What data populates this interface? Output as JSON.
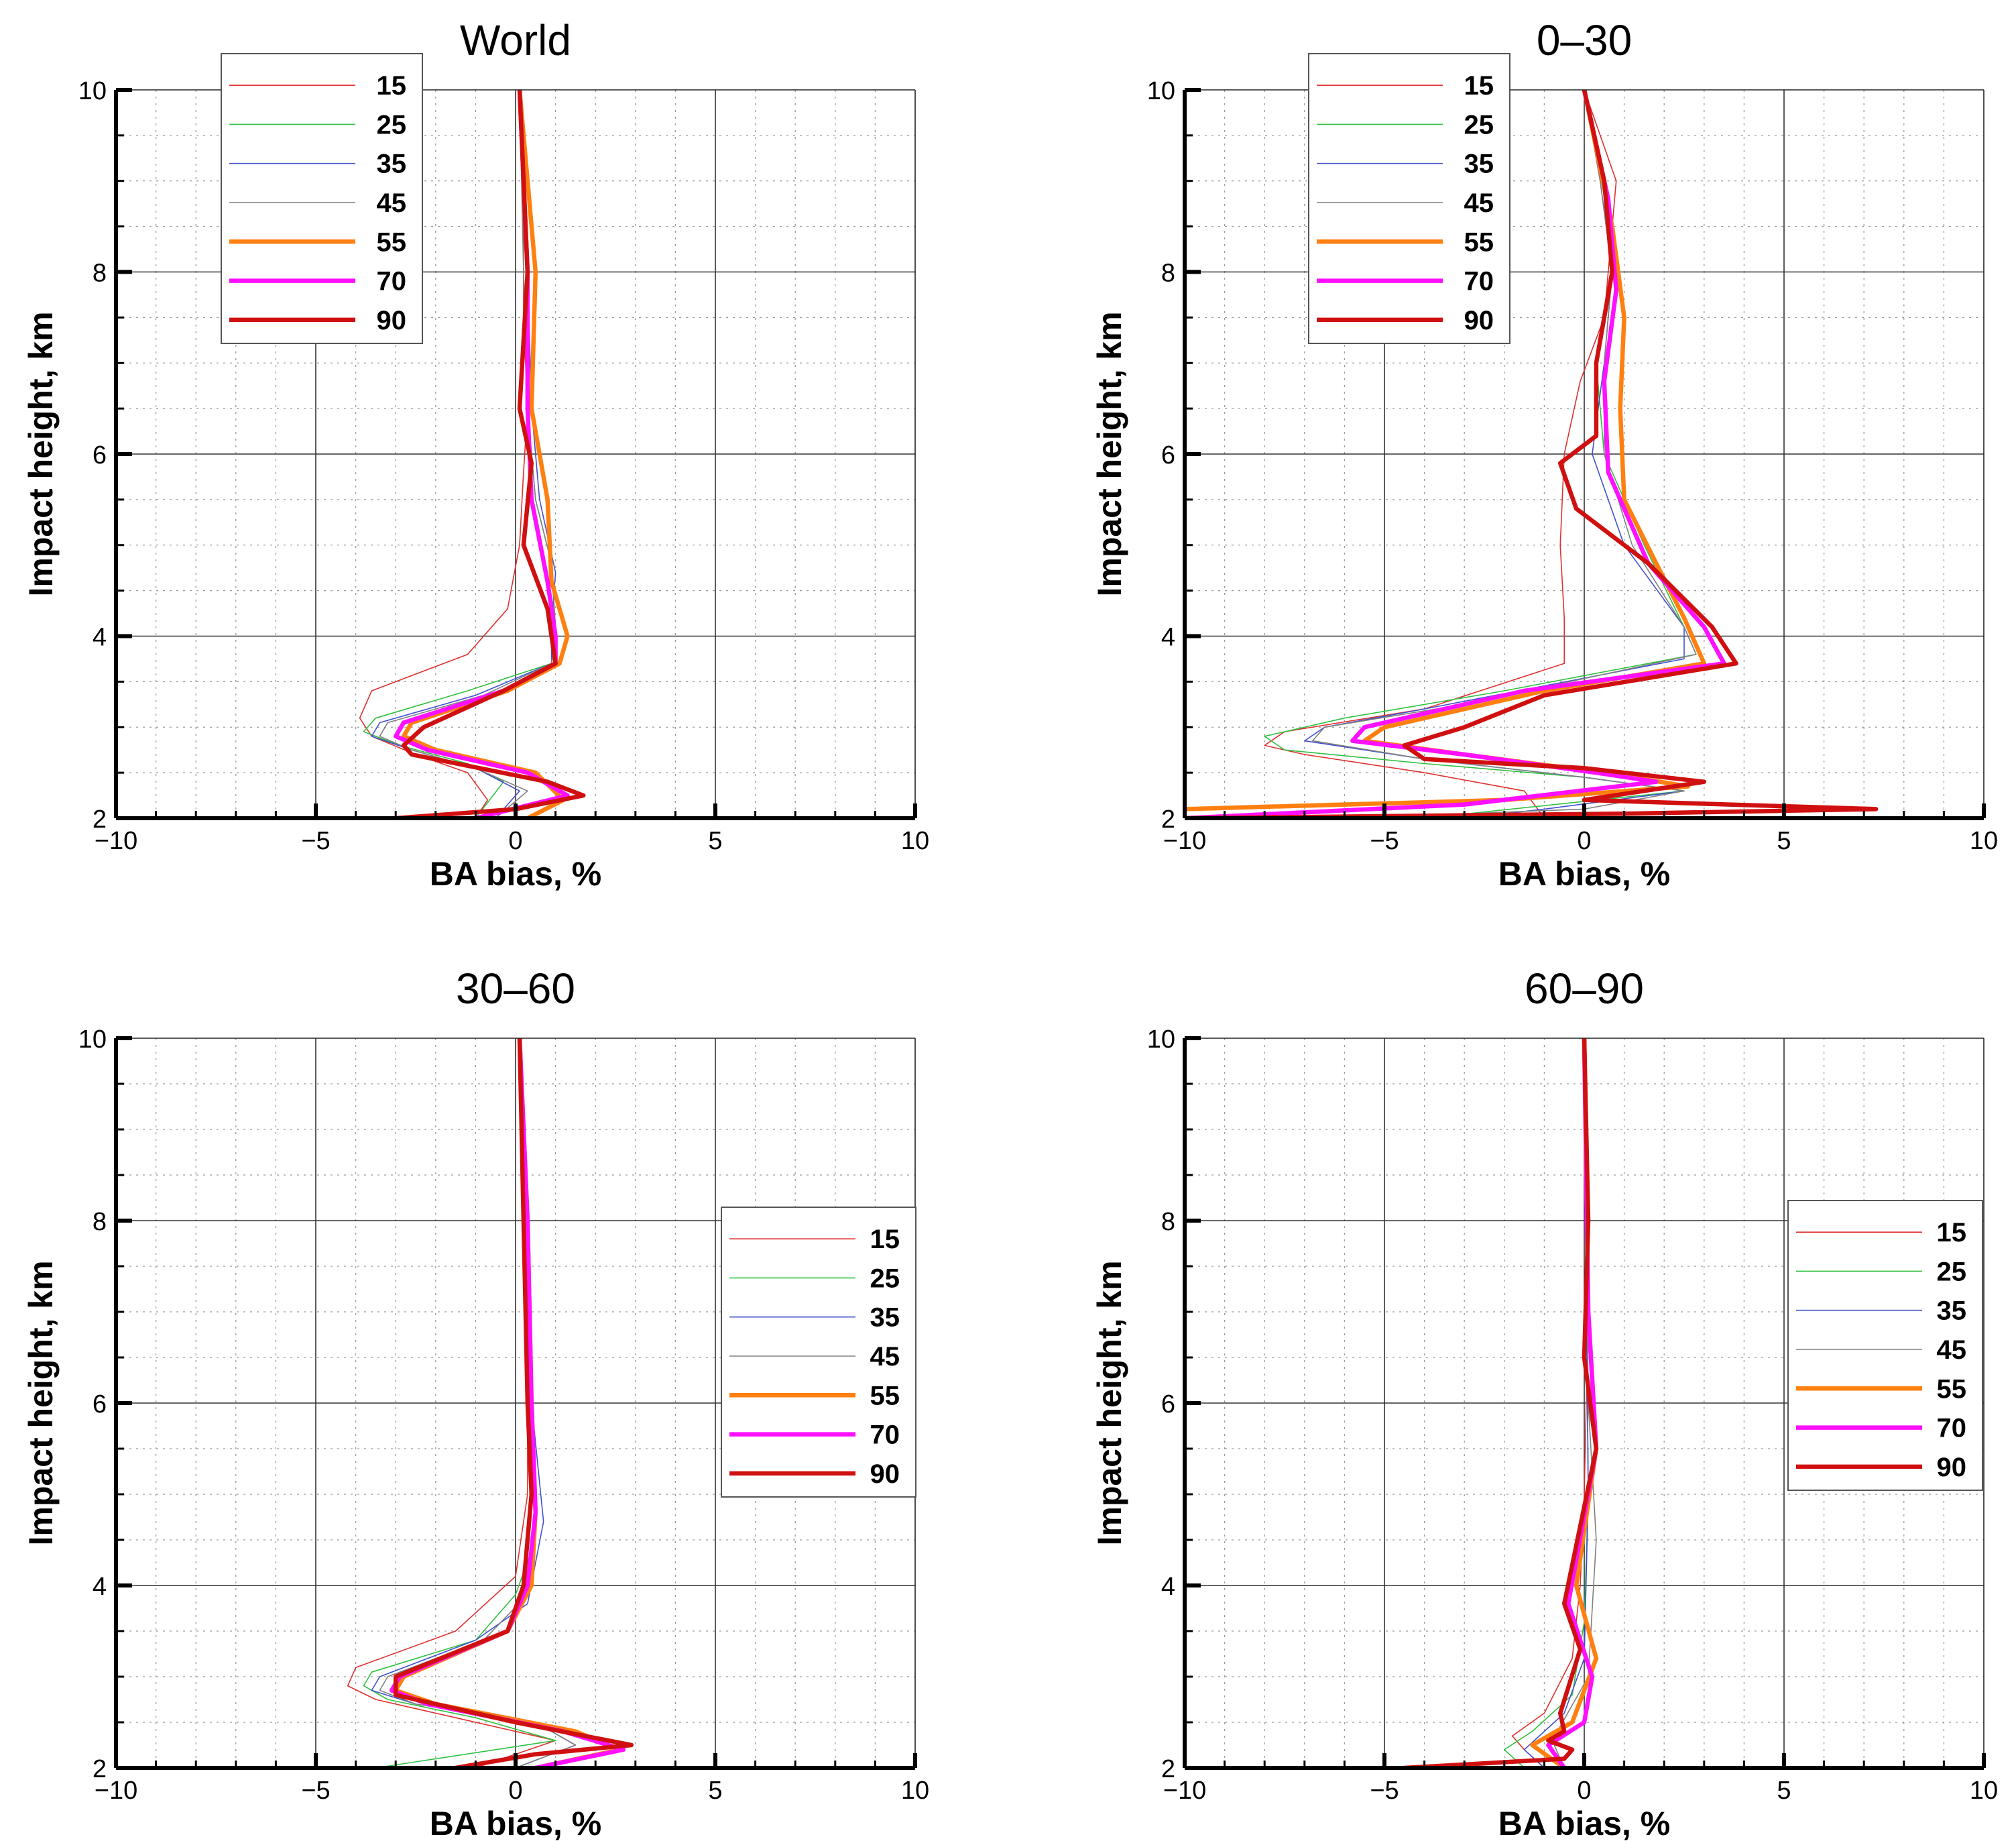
{
  "figure": {
    "colors": {
      "15": "#e03030",
      "25": "#30c040",
      "35": "#4050d0",
      "45": "#808080",
      "55": "#ff8010",
      "70": "#ff10ff",
      "90": "#d01010"
    }
  },
  "chart_data": [
    {
      "type": "line",
      "title": "World",
      "xlabel": "BA bias, %",
      "ylabel": "Impact height, km",
      "xlim": [
        -10,
        10
      ],
      "ylim": [
        2,
        10
      ],
      "xticks": [
        -10,
        -5,
        0,
        5,
        10
      ],
      "yticks": [
        2,
        4,
        6,
        8,
        10
      ],
      "xtick_labels": [
        "−10",
        "−5",
        "0",
        "5",
        "10"
      ],
      "ytick_labels": [
        "2",
        "4",
        "6",
        "8",
        "10"
      ],
      "grid": true,
      "legend_position": "top-left",
      "series": [
        {
          "name": "15",
          "x": [
            -1.0,
            -0.7,
            -1.2,
            -2.5,
            -3.6,
            -3.9,
            -3.6,
            -1.2,
            -0.2,
            0.1,
            0.2,
            0.3,
            0.2,
            0.2,
            0.1
          ],
          "y": [
            2.0,
            2.2,
            2.5,
            2.7,
            2.9,
            3.1,
            3.4,
            3.8,
            4.3,
            5.0,
            5.8,
            6.5,
            7.5,
            8.5,
            10.0
          ]
        },
        {
          "name": "25",
          "x": [
            -1.0,
            -0.3,
            -1.2,
            -2.9,
            -3.8,
            -3.5,
            -1.2,
            0.9,
            1.0,
            0.9,
            0.5,
            0.3,
            0.3,
            0.1
          ],
          "y": [
            2.0,
            2.4,
            2.6,
            2.8,
            2.95,
            3.1,
            3.4,
            3.7,
            4.0,
            4.8,
            5.5,
            6.5,
            8.0,
            10.0
          ]
        },
        {
          "name": "35",
          "x": [
            -0.5,
            0.1,
            -1.0,
            -2.6,
            -3.6,
            -3.4,
            -1.0,
            0.9,
            0.9,
            1.0,
            0.6,
            0.4,
            0.3,
            0.1
          ],
          "y": [
            2.0,
            2.3,
            2.55,
            2.75,
            2.9,
            3.05,
            3.35,
            3.7,
            4.1,
            4.7,
            5.5,
            6.5,
            8.0,
            10.0
          ]
        },
        {
          "name": "45",
          "x": [
            -0.5,
            0.3,
            -1.0,
            -2.6,
            -3.4,
            -3.2,
            -0.8,
            0.9,
            1.0,
            0.9,
            0.5,
            0.3,
            0.2,
            0.1
          ],
          "y": [
            2.0,
            2.3,
            2.55,
            2.75,
            2.9,
            3.05,
            3.35,
            3.7,
            4.1,
            4.8,
            5.5,
            6.5,
            8.0,
            10.0
          ]
        },
        {
          "name": "55",
          "x": [
            0.3,
            1.2,
            0.5,
            -2.0,
            -2.8,
            -2.6,
            -0.2,
            1.1,
            1.3,
            0.9,
            0.8,
            0.4,
            0.5,
            0.1
          ],
          "y": [
            2.0,
            2.2,
            2.5,
            2.75,
            2.9,
            3.05,
            3.4,
            3.7,
            4.0,
            4.6,
            5.5,
            6.5,
            8.0,
            10.0
          ]
        },
        {
          "name": "70",
          "x": [
            -1.0,
            1.3,
            0.3,
            -2.2,
            -3.0,
            -2.8,
            -0.3,
            1.0,
            1.0,
            0.8,
            0.4,
            0.3,
            0.3,
            0.1
          ],
          "y": [
            2.0,
            2.25,
            2.5,
            2.75,
            2.9,
            3.05,
            3.4,
            3.7,
            4.0,
            4.6,
            5.5,
            6.5,
            8.0,
            10.0
          ]
        },
        {
          "name": "90",
          "x": [
            -3.0,
            0.0,
            1.7,
            0.8,
            -2.6,
            -2.8,
            -2.3,
            -0.3,
            1.0,
            0.8,
            0.2,
            0.4,
            0.1,
            0.3,
            0.1
          ],
          "y": [
            2.0,
            2.1,
            2.25,
            2.4,
            2.7,
            2.8,
            3.0,
            3.4,
            3.7,
            4.3,
            5.0,
            5.9,
            6.5,
            8.0,
            10.0
          ]
        }
      ]
    },
    {
      "type": "line",
      "title": "0–30",
      "xlabel": "BA bias, %",
      "ylabel": "Impact height, km",
      "xlim": [
        -10,
        10
      ],
      "ylim": [
        2,
        10
      ],
      "xticks": [
        -10,
        -5,
        0,
        5,
        10
      ],
      "yticks": [
        2,
        4,
        6,
        8,
        10
      ],
      "xtick_labels": [
        "−10",
        "−5",
        "0",
        "5",
        "10"
      ],
      "ytick_labels": [
        "2",
        "4",
        "6",
        "8",
        "10"
      ],
      "grid": true,
      "legend_position": "top-left",
      "series": [
        {
          "name": "15",
          "x": [
            -1.0,
            -1.5,
            -4.0,
            -7.0,
            -8.0,
            -7.5,
            -4.0,
            -0.5,
            -0.5,
            -0.6,
            -0.5,
            -0.1,
            0.5,
            0.7,
            0.8,
            0.0
          ],
          "y": [
            2.0,
            2.3,
            2.5,
            2.7,
            2.8,
            2.95,
            3.2,
            3.7,
            4.2,
            5.0,
            6.0,
            6.8,
            7.5,
            8.5,
            9.0,
            10.0
          ]
        },
        {
          "name": "25",
          "x": [
            -4.0,
            2.5,
            0.0,
            -4.0,
            -7.5,
            -8.0,
            -6.0,
            -2.0,
            2.8,
            2.5,
            1.5,
            0.5,
            0.3,
            0.7,
            0.5,
            0.0
          ],
          "y": [
            2.0,
            2.3,
            2.45,
            2.6,
            2.75,
            2.9,
            3.1,
            3.4,
            3.8,
            4.1,
            5.0,
            6.0,
            7.0,
            8.0,
            9.0,
            10.0
          ]
        },
        {
          "name": "35",
          "x": [
            -3.0,
            -1.0,
            2.5,
            0.0,
            -4.0,
            -7.0,
            -6.5,
            -4.0,
            2.5,
            2.5,
            1.0,
            0.2,
            0.5,
            0.7,
            0.4,
            0.0
          ],
          "y": [
            2.0,
            2.1,
            2.3,
            2.45,
            2.65,
            2.85,
            3.0,
            3.2,
            3.75,
            4.1,
            5.0,
            6.0,
            7.0,
            8.0,
            9.0,
            10.0
          ]
        },
        {
          "name": "45",
          "x": [
            -6.0,
            0.0,
            2.5,
            0.0,
            -4.0,
            -6.8,
            -6.5,
            -3.0,
            2.8,
            2.5,
            1.2,
            0.5,
            0.5,
            0.7,
            0.4,
            0.0
          ],
          "y": [
            2.0,
            2.1,
            2.3,
            2.45,
            2.65,
            2.85,
            3.0,
            3.25,
            3.8,
            4.1,
            5.0,
            6.0,
            7.0,
            8.0,
            9.0,
            10.0
          ]
        },
        {
          "name": "55",
          "x": [
            -10.0,
            -2.0,
            2.6,
            0.5,
            -3.0,
            -5.5,
            -5.0,
            -1.0,
            3.0,
            2.5,
            1.8,
            1.0,
            0.9,
            1.0,
            0.7,
            0.0
          ],
          "y": [
            2.1,
            2.2,
            2.35,
            2.5,
            2.7,
            2.85,
            3.0,
            3.4,
            3.7,
            4.2,
            4.8,
            5.5,
            6.5,
            7.5,
            8.5,
            10.0
          ]
        },
        {
          "name": "70",
          "x": [
            -10.0,
            -3.0,
            1.8,
            0.3,
            -3.0,
            -5.8,
            -5.5,
            -1.5,
            3.5,
            3.0,
            1.6,
            0.6,
            0.5,
            0.8,
            0.6,
            0.0
          ],
          "y": [
            2.0,
            2.15,
            2.4,
            2.5,
            2.7,
            2.85,
            3.0,
            3.4,
            3.7,
            4.1,
            4.8,
            5.8,
            6.8,
            7.8,
            8.8,
            10.0
          ]
        },
        {
          "name": "90",
          "x": [
            -10.0,
            1.0,
            7.3,
            0.0,
            3.0,
            0.0,
            -4.0,
            -4.5,
            -3.0,
            -1.0,
            3.8,
            3.2,
            1.6,
            -0.2,
            -0.6,
            0.3,
            0.3,
            0.7,
            0.5,
            0.0
          ],
          "y": [
            2.0,
            2.05,
            2.1,
            2.2,
            2.4,
            2.55,
            2.65,
            2.8,
            3.0,
            3.35,
            3.7,
            4.1,
            4.8,
            5.4,
            5.9,
            6.2,
            7.0,
            8.0,
            9.0,
            10.0
          ]
        }
      ]
    },
    {
      "type": "line",
      "title": "30–60",
      "xlabel": "BA bias, %",
      "ylabel": "Impact height, km",
      "xlim": [
        -10,
        10
      ],
      "ylim": [
        2,
        10
      ],
      "xticks": [
        -10,
        -5,
        0,
        5,
        10
      ],
      "yticks": [
        2,
        4,
        6,
        8,
        10
      ],
      "xtick_labels": [
        "−10",
        "−5",
        "0",
        "5",
        "10"
      ],
      "ytick_labels": [
        "2",
        "4",
        "6",
        "8",
        "10"
      ],
      "grid": true,
      "legend_position": "middle-right",
      "series": [
        {
          "name": "15",
          "x": [
            -1.0,
            1.0,
            -1.5,
            -3.5,
            -4.2,
            -4.0,
            -1.5,
            0.0,
            0.3,
            0.3,
            0.2,
            0.1
          ],
          "y": [
            2.0,
            2.3,
            2.55,
            2.75,
            2.9,
            3.1,
            3.5,
            4.1,
            5.0,
            6.0,
            8.0,
            10.0
          ]
        },
        {
          "name": "25",
          "x": [
            -3.5,
            1.0,
            -1.0,
            -3.2,
            -3.8,
            -3.6,
            -1.0,
            0.0,
            0.5,
            0.4,
            0.2,
            0.1
          ],
          "y": [
            2.0,
            2.3,
            2.55,
            2.75,
            2.9,
            3.05,
            3.4,
            3.9,
            4.5,
            6.0,
            8.0,
            10.0
          ]
        },
        {
          "name": "35",
          "x": [
            0.0,
            1.5,
            0.5,
            -2.5,
            -3.6,
            -3.4,
            -1.0,
            0.3,
            0.7,
            0.4,
            0.3,
            0.1
          ],
          "y": [
            2.0,
            2.25,
            2.5,
            2.7,
            2.85,
            3.0,
            3.4,
            3.8,
            4.7,
            6.0,
            8.0,
            10.0
          ]
        },
        {
          "name": "45",
          "x": [
            0.0,
            1.5,
            0.5,
            -2.5,
            -3.4,
            -3.2,
            -0.8,
            0.3,
            0.5,
            0.4,
            0.3,
            0.1
          ],
          "y": [
            2.0,
            2.25,
            2.5,
            2.7,
            2.85,
            3.0,
            3.4,
            3.9,
            5.0,
            6.0,
            8.0,
            10.0
          ]
        },
        {
          "name": "55",
          "x": [
            0.5,
            2.6,
            1.5,
            -2.0,
            -3.0,
            -2.8,
            -0.2,
            0.4,
            0.5,
            0.4,
            0.3,
            0.1
          ],
          "y": [
            2.0,
            2.2,
            2.4,
            2.7,
            2.85,
            3.0,
            3.5,
            4.0,
            4.8,
            6.0,
            8.0,
            10.0
          ]
        },
        {
          "name": "70",
          "x": [
            0.5,
            2.7,
            1.2,
            -2.2,
            -3.1,
            -2.9,
            -0.2,
            0.3,
            0.5,
            0.4,
            0.3,
            0.1
          ],
          "y": [
            2.0,
            2.2,
            2.4,
            2.7,
            2.85,
            3.0,
            3.5,
            4.0,
            4.8,
            6.0,
            8.0,
            10.0
          ]
        },
        {
          "name": "90",
          "x": [
            -1.5,
            0.5,
            2.9,
            0.0,
            -3.0,
            -3.0,
            -0.2,
            0.2,
            0.4,
            0.3,
            0.2,
            0.1
          ],
          "y": [
            2.0,
            2.15,
            2.25,
            2.5,
            2.8,
            3.0,
            3.5,
            4.0,
            5.0,
            6.0,
            8.0,
            10.0
          ]
        }
      ]
    },
    {
      "type": "line",
      "title": "60–90",
      "xlabel": "BA bias, %",
      "ylabel": "Impact height, km",
      "xlim": [
        -10,
        10
      ],
      "ylim": [
        2,
        10
      ],
      "xticks": [
        -10,
        -5,
        0,
        5,
        10
      ],
      "yticks": [
        2,
        4,
        6,
        8,
        10
      ],
      "xtick_labels": [
        "−10",
        "−5",
        "0",
        "5",
        "10"
      ],
      "ytick_labels": [
        "2",
        "4",
        "6",
        "8",
        "10"
      ],
      "grid": true,
      "legend_position": "middle-right",
      "series": [
        {
          "name": "15",
          "x": [
            -1.0,
            -1.5,
            -1.8,
            -1.0,
            -0.3,
            -0.1,
            0.0,
            0.1,
            0.0
          ],
          "y": [
            2.0,
            2.2,
            2.35,
            2.6,
            3.2,
            4.0,
            5.0,
            7.0,
            10.0
          ]
        },
        {
          "name": "25",
          "x": [
            -1.5,
            -2.0,
            -1.3,
            -0.3,
            0.0,
            0.1,
            0.0
          ],
          "y": [
            2.0,
            2.2,
            2.4,
            2.8,
            3.6,
            5.0,
            10.0
          ]
        },
        {
          "name": "35",
          "x": [
            -1.0,
            -1.5,
            -0.5,
            0.0,
            0.1,
            0.0
          ],
          "y": [
            2.0,
            2.2,
            2.6,
            3.2,
            5.0,
            10.0
          ]
        },
        {
          "name": "45",
          "x": [
            -0.5,
            -0.8,
            0.1,
            0.3,
            0.1,
            0.0
          ],
          "y": [
            2.0,
            2.3,
            3.0,
            4.5,
            6.0,
            10.0
          ]
        },
        {
          "name": "55",
          "x": [
            -0.5,
            -1.3,
            -0.3,
            0.3,
            -0.2,
            0.3,
            0.1,
            0.0
          ],
          "y": [
            2.0,
            2.25,
            2.5,
            3.2,
            4.0,
            5.5,
            7.0,
            10.0
          ]
        },
        {
          "name": "70",
          "x": [
            -0.5,
            -0.9,
            0.0,
            0.2,
            -0.4,
            0.3,
            0.1,
            0.0
          ],
          "y": [
            2.0,
            2.25,
            2.5,
            3.0,
            3.8,
            5.5,
            7.0,
            10.0
          ]
        },
        {
          "name": "90",
          "x": [
            -4.5,
            -0.5,
            -0.3,
            -0.9,
            -0.5,
            -0.6,
            -0.1,
            -0.5,
            0.3,
            0.0,
            0.1,
            0.0
          ],
          "y": [
            2.0,
            2.1,
            2.2,
            2.3,
            2.4,
            2.6,
            3.3,
            3.8,
            5.5,
            6.5,
            8.0,
            10.0
          ]
        }
      ]
    }
  ]
}
